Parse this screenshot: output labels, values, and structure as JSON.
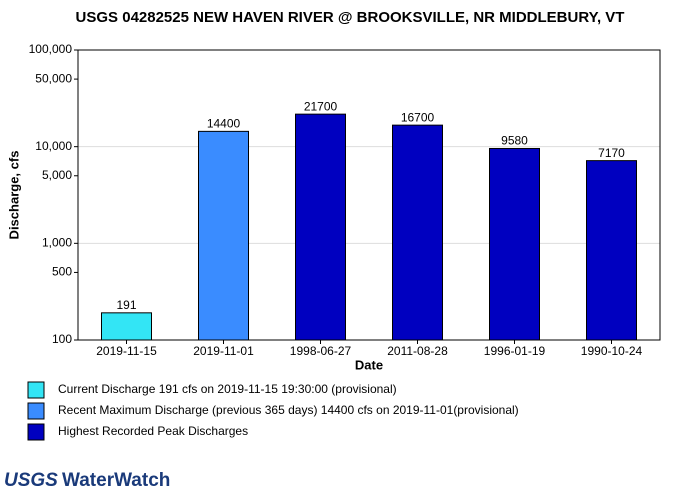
{
  "chart_data": {
    "type": "bar",
    "title": "USGS 04282525 NEW HAVEN RIVER @ BROOKSVILLE, NR MIDDLEBURY, VT",
    "x_label": "Date",
    "y_label": "Discharge, cfs",
    "categories": [
      "2019-11-15",
      "2019-11-01",
      "1998-06-27",
      "2011-08-28",
      "1996-01-19",
      "1990-10-24"
    ],
    "values": [
      191,
      14400,
      21700,
      16700,
      9580,
      7170
    ],
    "colors": [
      "#33e5f5",
      "#3a8cff",
      "#0000c0",
      "#0000c0",
      "#0000c0",
      "#0000c0"
    ],
    "y_log": true,
    "ylim": [
      100,
      100000
    ],
    "yticks": [
      100,
      500,
      {
        "value": 1000,
        "label": "1,000"
      },
      {
        "value": 5000,
        "label": "5,000"
      },
      {
        "value": 10000,
        "label": "10,000"
      },
      {
        "value": 50000,
        "label": "50,000"
      },
      {
        "value": 100000,
        "label": "100,000"
      }
    ],
    "grid": true,
    "legend": [
      {
        "label": "Current Discharge 191 cfs on 2019-11-15 19:30:00 (provisional)",
        "color": "#33e5f5"
      },
      {
        "label": "Recent Maximum Discharge (previous 365 days) 14400 cfs on 2019-11-01(provisional)",
        "color": "#3a8cff"
      },
      {
        "label": "Highest Recorded Peak Discharges",
        "color": "#0000c0"
      }
    ]
  },
  "logo": {
    "agency": "USGS",
    "product": "WaterWatch"
  }
}
